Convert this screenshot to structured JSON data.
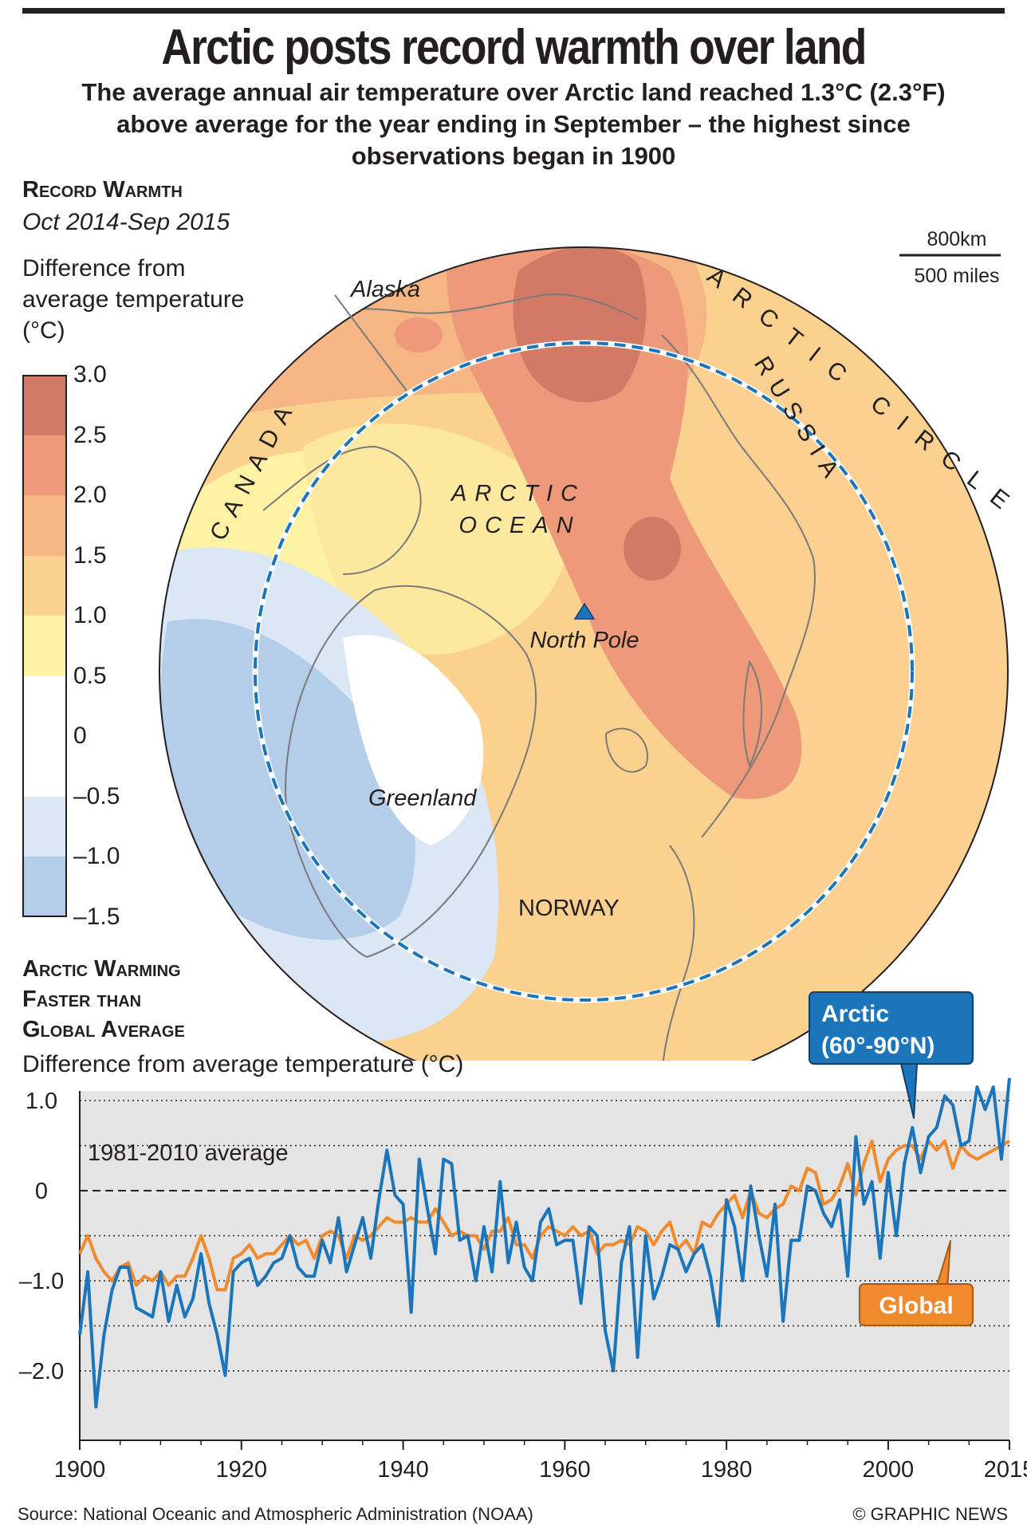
{
  "header": {
    "title": "Arctic posts record warmth over land",
    "subtitle": "The average annual air temperature over Arctic land reached 1.3°C (2.3°F) above average for the year ending in September – the highest since observations began in 1900"
  },
  "map": {
    "section_title": "Record Warmth",
    "period": "Oct 2014-Sep 2015",
    "legend_title": "Difference from average temperature (°C)",
    "legend_labels": [
      "3.0",
      "2.5",
      "2.0",
      "1.5",
      "1.0",
      "0.5",
      "0",
      "–0.5",
      "–1.0",
      "–1.5"
    ],
    "legend_colors": [
      "#d27a66",
      "#ee9a7a",
      "#f6b584",
      "#fbd18f",
      "#fff2a4",
      "#ffffff",
      "#ffffff",
      "#dbe7f5",
      "#b4cde9"
    ],
    "scale_km": "800km",
    "scale_miles": "500 miles",
    "labels": {
      "alaska": "Alaska",
      "canada": "CANADA",
      "russia": "RUSSIA",
      "arctic_circle": "ARCTIC CIRCLE",
      "ocean_1": "ARCTIC",
      "ocean_2": "OCEAN",
      "north_pole": "North Pole",
      "greenland": "Greenland",
      "norway": "NORWAY"
    }
  },
  "chart_section": {
    "title_lines": [
      "Arctic Warming",
      "Faster than",
      "Global Average"
    ],
    "ylabel": "Difference from average temperature (°C)",
    "baseline_label": "1981-2010 average",
    "arctic_callout": [
      "Arctic",
      "(60°-90°N)"
    ],
    "global_callout": "Global"
  },
  "chart_data": {
    "type": "line",
    "ylabel": "Difference from average temperature (°C)",
    "ylim": [
      -2.5,
      1.2
    ],
    "xlim": [
      1900,
      2015
    ],
    "yticks": [
      "1.0",
      "0",
      "–1.0",
      "–2.0"
    ],
    "xticks": [
      "1900",
      "1920",
      "1940",
      "1960",
      "1980",
      "2000",
      "2015"
    ],
    "grid": true,
    "colors": {
      "arctic": "#1a75bb",
      "global": "#f08a2c"
    },
    "x": [
      1900,
      1901,
      1902,
      1903,
      1904,
      1905,
      1906,
      1907,
      1908,
      1909,
      1910,
      1911,
      1912,
      1913,
      1914,
      1915,
      1916,
      1917,
      1918,
      1919,
      1920,
      1921,
      1922,
      1923,
      1924,
      1925,
      1926,
      1927,
      1928,
      1929,
      1930,
      1931,
      1932,
      1933,
      1934,
      1935,
      1936,
      1937,
      1938,
      1939,
      1940,
      1941,
      1942,
      1943,
      1944,
      1945,
      1946,
      1947,
      1948,
      1949,
      1950,
      1951,
      1952,
      1953,
      1954,
      1955,
      1956,
      1957,
      1958,
      1959,
      1960,
      1961,
      1962,
      1963,
      1964,
      1965,
      1966,
      1967,
      1968,
      1969,
      1970,
      1971,
      1972,
      1973,
      1974,
      1975,
      1976,
      1977,
      1978,
      1979,
      1980,
      1981,
      1982,
      1983,
      1984,
      1985,
      1986,
      1987,
      1988,
      1989,
      1990,
      1991,
      1992,
      1993,
      1994,
      1995,
      1996,
      1997,
      1998,
      1999,
      2000,
      2001,
      2002,
      2003,
      2004,
      2005,
      2006,
      2007,
      2008,
      2009,
      2010,
      2011,
      2012,
      2013,
      2014,
      2015
    ],
    "series": [
      {
        "name": "Arctic (60°-90°N)",
        "values": [
          -1.6,
          -0.9,
          -2.4,
          -1.6,
          -1.1,
          -0.85,
          -0.85,
          -1.3,
          -1.35,
          -1.4,
          -0.9,
          -1.45,
          -1.05,
          -1.4,
          -1.2,
          -0.7,
          -1.25,
          -1.6,
          -2.05,
          -0.9,
          -0.8,
          -0.75,
          -1.05,
          -0.95,
          -0.8,
          -0.75,
          -0.5,
          -0.85,
          -0.95,
          -0.95,
          -0.55,
          -0.8,
          -0.3,
          -0.9,
          -0.6,
          -0.3,
          -0.75,
          -0.1,
          0.45,
          -0.05,
          -0.15,
          -1.35,
          0.35,
          -0.2,
          -0.7,
          0.35,
          0.3,
          -0.55,
          -0.5,
          -1.0,
          -0.4,
          -0.9,
          0.1,
          -0.8,
          -0.35,
          -0.85,
          -1.0,
          -0.35,
          -0.2,
          -0.6,
          -0.55,
          -0.55,
          -1.25,
          -0.4,
          -0.5,
          -1.55,
          -2.0,
          -0.8,
          -0.4,
          -1.85,
          -0.5,
          -1.2,
          -0.95,
          -0.6,
          -0.65,
          -0.9,
          -0.7,
          -0.6,
          -0.95,
          -1.5,
          -0.1,
          -0.4,
          -1.0,
          0.05,
          -0.5,
          -0.95,
          -0.15,
          -1.45,
          -0.55,
          -0.55,
          0.05,
          0.0,
          -0.25,
          -0.4,
          -0.1,
          -0.95,
          0.6,
          -0.15,
          0.1,
          -0.75,
          0.2,
          -0.5,
          0.3,
          0.7,
          0.2,
          0.6,
          0.7,
          1.05,
          0.95,
          0.5,
          0.55,
          1.15,
          0.9,
          1.15,
          0.35,
          1.25
        ]
      },
      {
        "name": "Global",
        "values": [
          -0.7,
          -0.5,
          -0.75,
          -0.9,
          -1.0,
          -0.85,
          -0.8,
          -1.05,
          -0.95,
          -1.0,
          -0.9,
          -1.05,
          -0.95,
          -0.95,
          -0.75,
          -0.5,
          -0.75,
          -1.1,
          -1.1,
          -0.75,
          -0.7,
          -0.6,
          -0.75,
          -0.7,
          -0.7,
          -0.6,
          -0.5,
          -0.6,
          -0.55,
          -0.75,
          -0.5,
          -0.45,
          -0.5,
          -0.75,
          -0.5,
          -0.55,
          -0.5,
          -0.4,
          -0.3,
          -0.35,
          -0.35,
          -0.3,
          -0.35,
          -0.35,
          -0.2,
          -0.35,
          -0.5,
          -0.45,
          -0.5,
          -0.5,
          -0.65,
          -0.45,
          -0.45,
          -0.3,
          -0.6,
          -0.6,
          -0.75,
          -0.5,
          -0.4,
          -0.45,
          -0.5,
          -0.4,
          -0.5,
          -0.45,
          -0.7,
          -0.6,
          -0.6,
          -0.55,
          -0.6,
          -0.4,
          -0.45,
          -0.6,
          -0.45,
          -0.35,
          -0.65,
          -0.55,
          -0.7,
          -0.35,
          -0.4,
          -0.25,
          -0.15,
          -0.05,
          -0.3,
          0.0,
          -0.25,
          -0.3,
          -0.2,
          -0.15,
          0.05,
          0.0,
          0.25,
          0.2,
          -0.15,
          -0.1,
          0.05,
          0.3,
          -0.05,
          0.3,
          0.55,
          0.1,
          0.35,
          0.45,
          0.5,
          0.5,
          0.35,
          0.55,
          0.45,
          0.55,
          0.25,
          0.5,
          0.4,
          0.35,
          0.4,
          0.45,
          0.5,
          0.55
        ]
      }
    ]
  },
  "footer": {
    "source": "Source: National Oceanic and Atmospheric Administration (NOAA)",
    "credit": "© GRAPHIC NEWS"
  }
}
